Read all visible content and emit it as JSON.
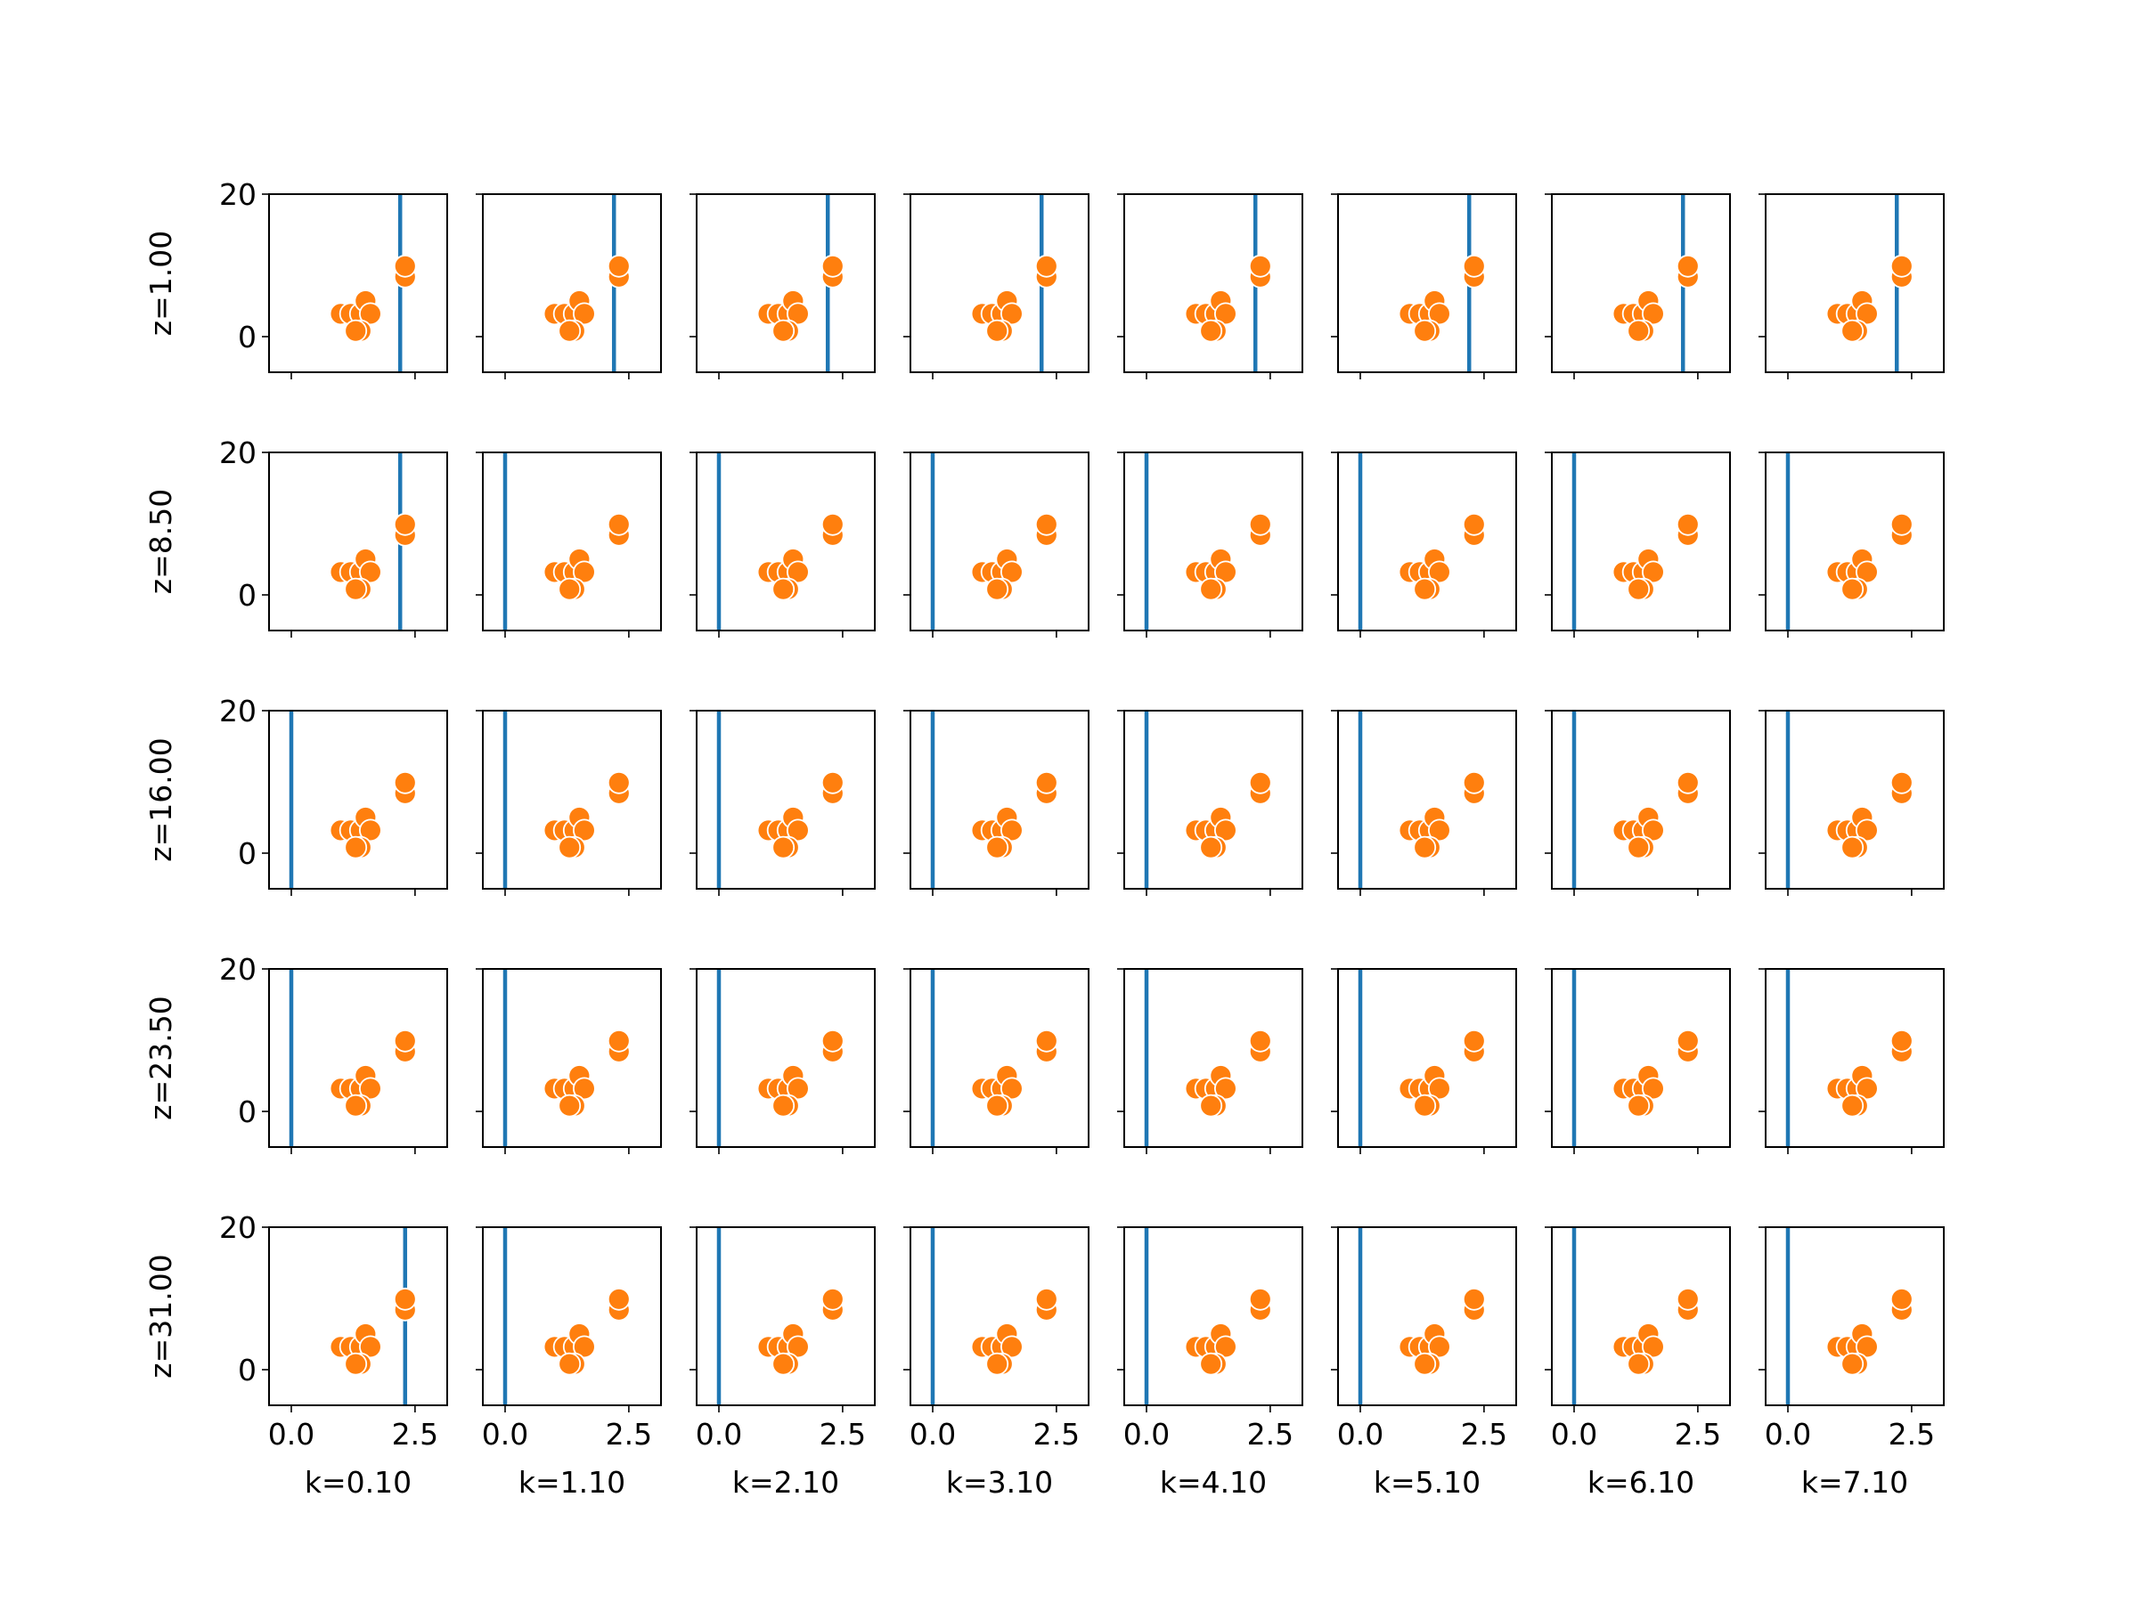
{
  "chart_data": {
    "type": "scatter",
    "layout": "small-multiples grid, 5 rows x 8 columns, shared axes",
    "row_labels": [
      "z=1.00",
      "z=8.50",
      "z=16.00",
      "z=23.50",
      "z=31.00"
    ],
    "col_labels": [
      "k=0.10",
      "k=1.10",
      "k=2.10",
      "k=3.10",
      "k=4.10",
      "k=5.10",
      "k=6.10",
      "k=7.10"
    ],
    "xlim": [
      -0.45,
      3.15
    ],
    "ylim": [
      -5,
      20
    ],
    "x_ticks": [
      0.0,
      2.5
    ],
    "x_tick_labels": [
      "0.0",
      "2.5"
    ],
    "y_ticks": [
      0,
      20
    ],
    "y_tick_labels": [
      "0",
      "20"
    ],
    "grid": false,
    "points": {
      "color": "#ff7f0e",
      "edge_color": "#ffffff",
      "x": [
        1.0,
        1.2,
        1.4,
        1.5,
        1.6,
        1.4,
        1.3,
        2.3,
        2.3
      ],
      "y": [
        3.2,
        3.2,
        3.2,
        5.0,
        3.2,
        0.8,
        0.8,
        8.4,
        9.9
      ]
    },
    "vertical_line": {
      "color": "#1f77b4",
      "x_by_row": [
        [
          2.2,
          2.2,
          2.2,
          2.2,
          2.2,
          2.2,
          2.2,
          2.2
        ],
        [
          2.2,
          0.0,
          0.0,
          0.0,
          0.0,
          0.0,
          0.0,
          0.0
        ],
        [
          0.0,
          0.0,
          0.0,
          0.0,
          0.0,
          0.0,
          0.0,
          0.0
        ],
        [
          0.0,
          0.0,
          0.0,
          0.0,
          0.0,
          0.0,
          0.0,
          0.0
        ],
        [
          2.3,
          0.0,
          0.0,
          0.0,
          0.0,
          0.0,
          0.0,
          0.0
        ]
      ]
    }
  }
}
